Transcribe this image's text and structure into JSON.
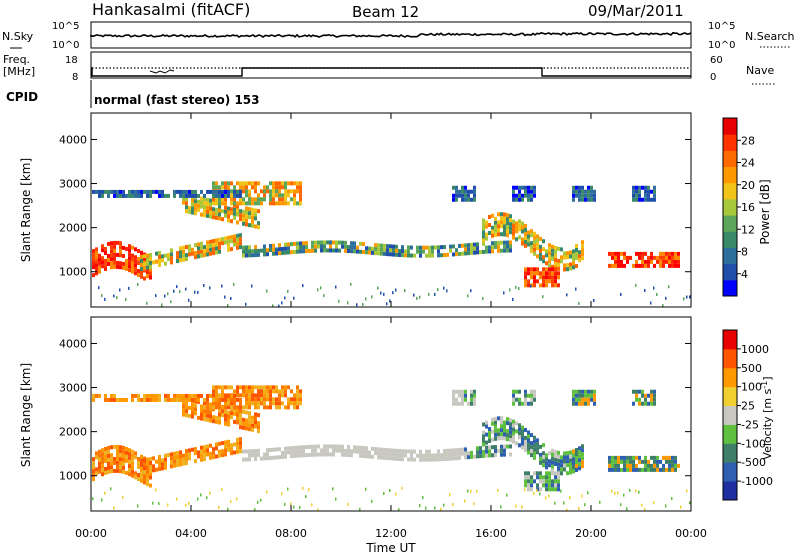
{
  "header": {
    "station": "Hankasalmi (fitACF)",
    "beam": "Beam 12",
    "date": "09/Mar/2011"
  },
  "aux_panels": {
    "nsky": {
      "label": "N.Sky",
      "ticks": [
        "10^5",
        "10^0"
      ]
    },
    "nsearch": {
      "label": "N.Search",
      "ticks": [
        "10^5",
        "10^0"
      ]
    },
    "freq": {
      "label_line1": "Freq.",
      "label_line2": "[MHz]",
      "ticks": [
        "18",
        "8"
      ]
    },
    "nave": {
      "label": "Nave",
      "ticks": [
        "60",
        "0"
      ]
    },
    "cpid": {
      "label": "CPID",
      "value": "normal (fast stereo) 153"
    }
  },
  "chart_data": [
    {
      "type": "heatmap",
      "title": "",
      "ylabel": "Slant Range [km]",
      "xlabel": "",
      "ylim": [
        200,
        4600
      ],
      "yticks": [
        "4000",
        "3000",
        "2000",
        "1000"
      ],
      "colorbar": {
        "label": "Power [dB]",
        "ticks": [
          "28",
          "24",
          "20",
          "16",
          "12",
          "8",
          "4"
        ],
        "colors": [
          "#0000ff",
          "#1f4faa",
          "#2e6e9c",
          "#3a8a6a",
          "#5aa65a",
          "#a8c83c",
          "#f0c419",
          "#ff9900",
          "#ff6a00",
          "#ff3300",
          "#e60000"
        ]
      }
    },
    {
      "type": "heatmap",
      "title": "",
      "ylabel": "Slant Range [km]",
      "xlabel": "Time UT",
      "ylim": [
        200,
        4600
      ],
      "yticks": [
        "4000",
        "3000",
        "2000",
        "1000"
      ],
      "xticks": [
        "00:00",
        "04:00",
        "08:00",
        "12:00",
        "16:00",
        "20:00",
        "00:00"
      ],
      "colorbar": {
        "label": "Velocity [m s^-1]",
        "ticks": [
          "1000",
          "500",
          "100",
          "25",
          "-25",
          "-100",
          "-500",
          "-1000"
        ],
        "colors": [
          "#1f2fa0",
          "#2e5fb0",
          "#3f7f6a",
          "#5fbf3f",
          "#c8c8c0",
          "#f0d030",
          "#ff9900",
          "#ff5500",
          "#e60000"
        ]
      }
    }
  ]
}
